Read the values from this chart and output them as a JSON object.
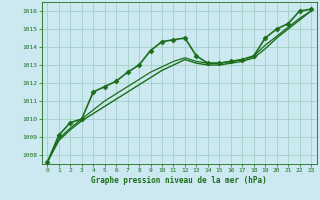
{
  "title": "Graphe pression niveau de la mer (hPa)",
  "bg_color": "#cce8f0",
  "grid_color": "#99ccbb",
  "line_color": "#1a6e1a",
  "marker_color": "#1a6e1a",
  "xlim": [
    -0.5,
    23.5
  ],
  "ylim": [
    1007.5,
    1016.5
  ],
  "yticks": [
    1008,
    1009,
    1010,
    1011,
    1012,
    1013,
    1014,
    1015,
    1016
  ],
  "xticks": [
    0,
    1,
    2,
    3,
    4,
    5,
    6,
    7,
    8,
    9,
    10,
    11,
    12,
    13,
    14,
    15,
    16,
    17,
    18,
    19,
    20,
    21,
    22,
    23
  ],
  "series": [
    {
      "x": [
        0,
        1,
        2,
        3,
        4,
        5,
        6,
        7,
        8,
        9,
        10,
        11,
        12,
        13,
        14,
        15,
        16,
        17,
        18,
        19,
        20,
        21,
        22,
        23
      ],
      "y": [
        1007.6,
        1009.1,
        1009.8,
        1010.0,
        1011.5,
        1011.8,
        1012.1,
        1012.6,
        1013.0,
        1013.8,
        1014.3,
        1014.4,
        1014.5,
        1013.5,
        1013.1,
        1013.1,
        1013.2,
        1013.3,
        1013.5,
        1014.5,
        1015.0,
        1015.3,
        1016.0,
        1016.1
      ],
      "marker": "D",
      "linewidth": 1.2,
      "markersize": 2.5
    },
    {
      "x": [
        0,
        1,
        2,
        3,
        4,
        5,
        6,
        7,
        8,
        9,
        10,
        11,
        12,
        13,
        14,
        15,
        16,
        17,
        18,
        19,
        20,
        21,
        22,
        23
      ],
      "y": [
        1007.6,
        1008.8,
        1009.4,
        1009.9,
        1010.3,
        1010.7,
        1011.1,
        1011.5,
        1011.9,
        1012.3,
        1012.7,
        1013.0,
        1013.3,
        1013.1,
        1013.0,
        1013.0,
        1013.1,
        1013.2,
        1013.4,
        1013.9,
        1014.5,
        1015.0,
        1015.5,
        1016.0
      ],
      "marker": null,
      "linewidth": 1.0,
      "markersize": 0
    },
    {
      "x": [
        0,
        1,
        2,
        3,
        4,
        5,
        6,
        7,
        8,
        9,
        10,
        11,
        12,
        13,
        14,
        15,
        16,
        17,
        18,
        19,
        20,
        21,
        22,
        23
      ],
      "y": [
        1007.6,
        1008.9,
        1009.5,
        1010.0,
        1010.5,
        1011.0,
        1011.4,
        1011.8,
        1012.2,
        1012.6,
        1012.9,
        1013.2,
        1013.4,
        1013.2,
        1013.1,
        1013.1,
        1013.2,
        1013.3,
        1013.5,
        1014.1,
        1014.6,
        1015.1,
        1015.6,
        1016.0
      ],
      "marker": null,
      "linewidth": 0.9,
      "markersize": 0
    }
  ]
}
